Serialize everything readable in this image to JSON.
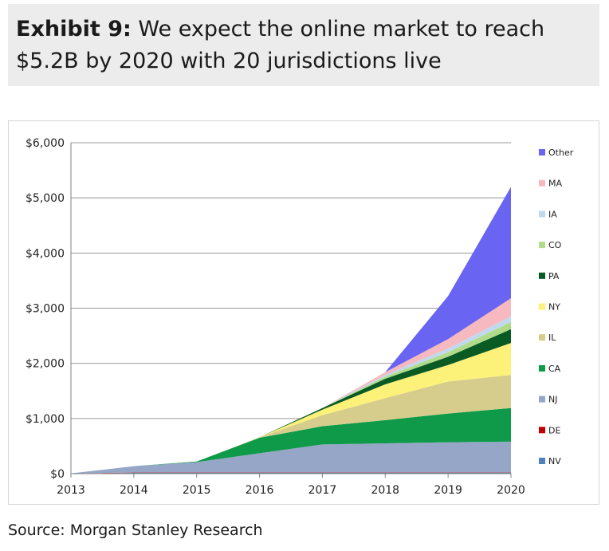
{
  "header": {
    "label": "Exhibit 9:",
    "title_line1": "We expect the online market to reach",
    "title_line2": "$5.2B by 2020 with 20 jurisdictions live"
  },
  "source": "Source: Morgan Stanley Research",
  "chart_data": {
    "type": "area",
    "stacked": true,
    "x": [
      "2013",
      "2014",
      "2015",
      "2016",
      "2017",
      "2018",
      "2019",
      "2020"
    ],
    "ylim": [
      0,
      6000
    ],
    "yticks": [
      0,
      1000,
      2000,
      3000,
      4000,
      5000,
      6000
    ],
    "ytick_labels": [
      "$0",
      "$1,000",
      "$2,000",
      "$3,000",
      "$4,000",
      "$5,000",
      "$6,000"
    ],
    "grid": true,
    "legend_position": "right",
    "series": [
      {
        "name": "NV",
        "color": "#4f81bd",
        "values": [
          5,
          15,
          15,
          15,
          15,
          15,
          15,
          15
        ]
      },
      {
        "name": "DE",
        "color": "#c00000",
        "values": [
          0,
          5,
          5,
          5,
          5,
          5,
          5,
          5
        ]
      },
      {
        "name": "NJ",
        "color": "#95a6c6",
        "values": [
          0,
          115,
          190,
          350,
          510,
          530,
          550,
          560
        ]
      },
      {
        "name": "CA",
        "color": "#0e9a48",
        "values": [
          0,
          0,
          10,
          280,
          330,
          420,
          520,
          610
        ]
      },
      {
        "name": "IL",
        "color": "#d6cc8c",
        "values": [
          0,
          0,
          0,
          10,
          200,
          400,
          580,
          600
        ]
      },
      {
        "name": "NY",
        "color": "#fcf27a",
        "values": [
          0,
          0,
          0,
          0,
          100,
          250,
          300,
          580
        ]
      },
      {
        "name": "PA",
        "color": "#0a5a24",
        "values": [
          0,
          0,
          0,
          0,
          30,
          100,
          150,
          250
        ]
      },
      {
        "name": "CO",
        "color": "#b0dc8a",
        "values": [
          0,
          0,
          0,
          0,
          0,
          40,
          80,
          130
        ]
      },
      {
        "name": "IA",
        "color": "#c0d9ec",
        "values": [
          0,
          0,
          0,
          0,
          0,
          30,
          70,
          100
        ]
      },
      {
        "name": "MA",
        "color": "#f7b9c0",
        "values": [
          0,
          0,
          0,
          0,
          0,
          50,
          170,
          330
        ]
      },
      {
        "name": "Other",
        "color": "#6a64f2",
        "values": [
          0,
          0,
          0,
          0,
          0,
          0,
          780,
          2020
        ]
      }
    ]
  }
}
